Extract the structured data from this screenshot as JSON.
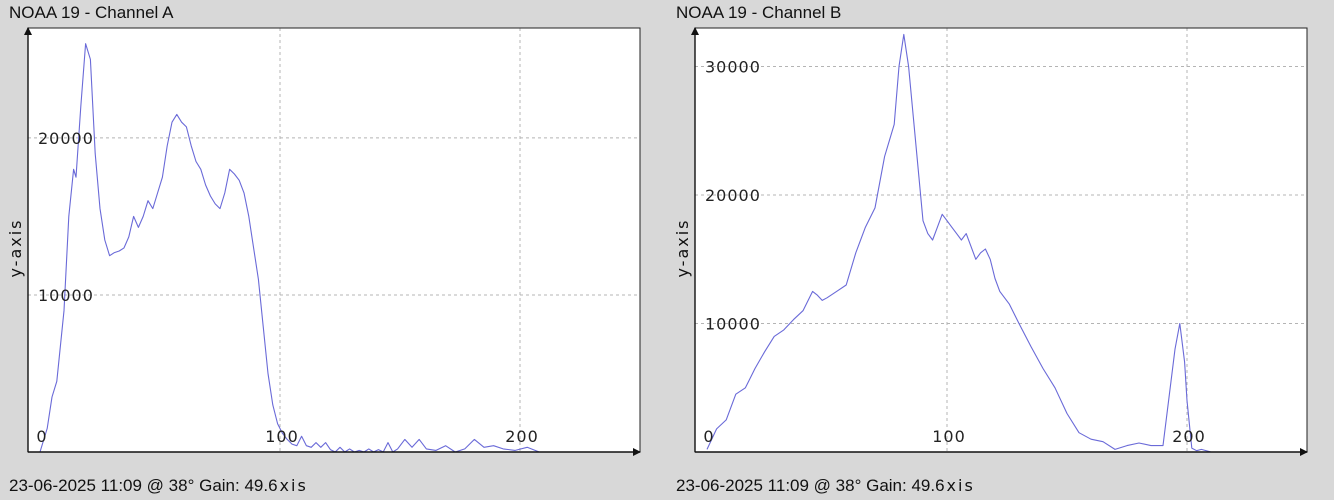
{
  "colors": {
    "background": "#d8d8d8",
    "plot_background": "#ffffff",
    "series": "#6a6ad8",
    "grid": "#b4b4b4"
  },
  "panels": [
    {
      "title": "NOAA 19 - Channel A",
      "ylabel": "y-axis",
      "footer": "23-06-2025 11:09 @ 38° Gain: 49.6",
      "footer_axis": "xis"
    },
    {
      "title": "NOAA 19 - Channel B",
      "ylabel": "y-axis",
      "footer": "23-06-2025 11:09 @ 38° Gain: 49.6",
      "footer_axis": "xis"
    }
  ],
  "chart_data": [
    {
      "type": "line",
      "title": "NOAA 19 - Channel A",
      "ylabel": "y-axis",
      "xlabel": "xis",
      "xlim": [
        -5,
        250
      ],
      "ylim": [
        0,
        27000
      ],
      "xticks": [
        0,
        100,
        200
      ],
      "yticks": [
        10000,
        20000
      ],
      "grid": true,
      "series": [
        {
          "x": [
            0,
            3,
            5,
            7,
            10,
            12,
            14,
            15,
            17,
            19,
            21,
            23,
            25,
            27,
            29,
            31,
            33,
            35,
            37,
            39,
            41,
            43,
            45,
            47,
            49,
            51,
            53,
            55,
            57,
            59,
            61,
            63,
            65,
            67,
            69,
            71,
            73,
            75,
            77,
            79,
            81,
            83,
            85,
            87,
            89,
            91,
            93,
            95,
            97,
            99,
            101,
            103,
            105,
            107,
            109,
            111,
            113,
            115,
            117,
            119,
            121,
            123,
            125,
            127,
            129,
            131,
            133,
            135,
            137,
            139,
            141,
            143,
            145,
            147,
            149,
            152,
            155,
            158,
            161,
            165,
            169,
            173,
            177,
            181,
            185,
            189,
            193,
            198,
            203,
            208,
            213
          ],
          "y": [
            0,
            1500,
            3500,
            4500,
            9000,
            15000,
            18000,
            17500,
            22000,
            26000,
            25000,
            19000,
            15500,
            13500,
            12500,
            12700,
            12800,
            13000,
            13700,
            15000,
            14300,
            15000,
            16000,
            15500,
            16500,
            17500,
            19500,
            21000,
            21500,
            21000,
            20700,
            19500,
            18500,
            18000,
            17000,
            16300,
            15800,
            15500,
            16500,
            18000,
            17700,
            17300,
            16500,
            15000,
            13000,
            11000,
            8000,
            5000,
            3000,
            1800,
            1200,
            800,
            500,
            400,
            1000,
            400,
            300,
            600,
            300,
            600,
            150,
            0,
            300,
            0,
            200,
            0,
            100,
            0,
            200,
            0,
            150,
            0,
            600,
            0,
            200,
            800,
            300,
            800,
            200,
            100,
            400,
            0,
            200,
            800,
            300,
            400,
            200,
            100,
            300,
            0,
            0
          ]
        }
      ]
    },
    {
      "type": "line",
      "title": "NOAA 19 - Channel B",
      "ylabel": "y-axis",
      "xlabel": "xis",
      "xlim": [
        -5,
        250
      ],
      "ylim": [
        0,
        33000
      ],
      "xticks": [
        0,
        100,
        200
      ],
      "yticks": [
        10000,
        20000,
        30000
      ],
      "grid": true,
      "series": [
        {
          "x": [
            0,
            4,
            8,
            12,
            16,
            20,
            24,
            28,
            32,
            36,
            40,
            44,
            46,
            48,
            50,
            54,
            58,
            62,
            66,
            70,
            74,
            78,
            80,
            82,
            84,
            86,
            88,
            90,
            92,
            94,
            96,
            98,
            100,
            102,
            104,
            106,
            108,
            110,
            112,
            114,
            116,
            118,
            120,
            122,
            124,
            126,
            130,
            135,
            140,
            145,
            150,
            155,
            160,
            165,
            170,
            175,
            180,
            185,
            190,
            195,
            197,
            199,
            200,
            202,
            204,
            206,
            210
          ],
          "y": [
            200,
            1800,
            2500,
            4500,
            5000,
            6500,
            7800,
            9000,
            9500,
            10300,
            11000,
            12500,
            12200,
            11800,
            12000,
            12500,
            13000,
            15500,
            17500,
            19000,
            23000,
            25500,
            30000,
            32500,
            30000,
            26000,
            22000,
            18000,
            17000,
            16500,
            17500,
            18500,
            18000,
            17500,
            17000,
            16500,
            17000,
            16000,
            15000,
            15500,
            15800,
            15000,
            13500,
            12500,
            12000,
            11500,
            10000,
            8200,
            6500,
            5000,
            3000,
            1500,
            1000,
            800,
            200,
            500,
            700,
            500,
            500,
            8000,
            10000,
            7000,
            4000,
            300,
            100,
            200,
            0
          ]
        }
      ]
    }
  ]
}
